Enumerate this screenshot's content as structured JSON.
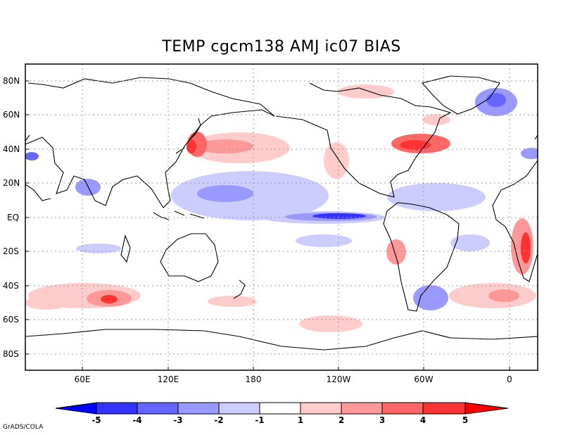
{
  "title": "TEMP cgcm138 AMJ ic07 BIAS",
  "credit": "GrADS/COLA",
  "axes": {
    "lat_labels": [
      "80N",
      "60N",
      "40N",
      "20N",
      "EQ",
      "20S",
      "40S",
      "60S",
      "80S"
    ],
    "lat_values": [
      80,
      60,
      40,
      20,
      0,
      -20,
      -40,
      -60,
      -80
    ],
    "lon_labels": [
      "60E",
      "120E",
      "180",
      "120W",
      "60W",
      "0"
    ],
    "lon_values": [
      60,
      120,
      180,
      240,
      300,
      360
    ],
    "lon_range": [
      20,
      380
    ],
    "lat_range": [
      -90,
      90
    ],
    "grid": "dotted"
  },
  "colorbar": {
    "labels": [
      "-5",
      "-4",
      "-3",
      "-2",
      "-1",
      "1",
      "2",
      "3",
      "4",
      "5"
    ],
    "colors": [
      "#0000ff",
      "#3333ff",
      "#6666ff",
      "#9999ff",
      "#ccccff",
      "#ffffff",
      "#ffcccc",
      "#ff9999",
      "#ff6666",
      "#ff3333",
      "#ff0000"
    ]
  },
  "chart_data": {
    "type": "heatmap",
    "title": "TEMP cgcm138 AMJ ic07 BIAS",
    "xlabel": "",
    "ylabel": "",
    "xlim": [
      20,
      380
    ],
    "ylim": [
      -90,
      90
    ],
    "levels": [
      -5,
      -4,
      -3,
      -2,
      -1,
      1,
      2,
      3,
      4,
      5
    ],
    "anomalies": [
      {
        "region": "equatorial east Pacific",
        "lon": 240,
        "lat": 0,
        "value": -5
      },
      {
        "region": "central tropical Pacific",
        "lon": 200,
        "lat": 15,
        "value": -2
      },
      {
        "region": "Kuroshio extension",
        "lon": 155,
        "lat": 40,
        "value": 4
      },
      {
        "region": "Gulf Stream",
        "lon": 290,
        "lat": 40,
        "value": 4
      },
      {
        "region": "California coast",
        "lon": 240,
        "lat": 30,
        "value": 2
      },
      {
        "region": "Peru coast",
        "lon": 282,
        "lat": -20,
        "value": 2
      },
      {
        "region": "Benguela coast",
        "lon": 368,
        "lat": -20,
        "value": 4
      },
      {
        "region": "southern Indian Ocean",
        "lon": 70,
        "lat": -50,
        "value": 4
      },
      {
        "region": "South Atlantic",
        "lon": 355,
        "lat": -48,
        "value": 3
      },
      {
        "region": "Labrador Sea",
        "lon": 305,
        "lat": 62,
        "value": -3
      },
      {
        "region": "Brazil-Malvinas",
        "lon": 305,
        "lat": -45,
        "value": -3
      },
      {
        "region": "Arabian Sea",
        "lon": 65,
        "lat": 18,
        "value": -2
      },
      {
        "region": "SE Pacific",
        "lon": 210,
        "lat": -15,
        "value": -1
      }
    ]
  }
}
